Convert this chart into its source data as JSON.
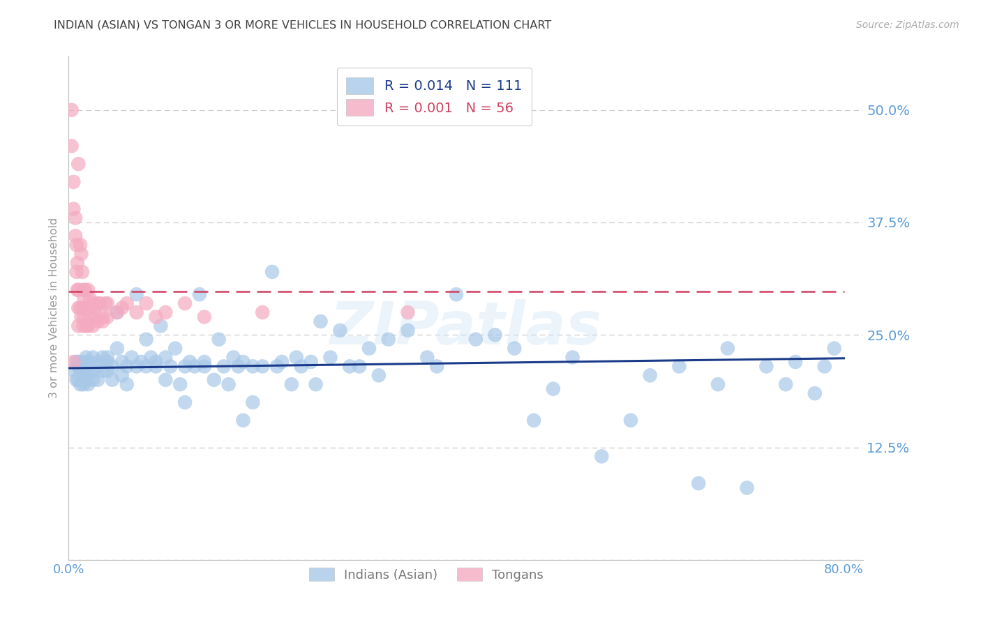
{
  "title": "INDIAN (ASIAN) VS TONGAN 3 OR MORE VEHICLES IN HOUSEHOLD CORRELATION CHART",
  "source": "Source: ZipAtlas.com",
  "ylabel": "3 or more Vehicles in Household",
  "xlim": [
    0.0,
    0.82
  ],
  "ylim": [
    0.0,
    0.56
  ],
  "yticks": [
    0.0,
    0.125,
    0.25,
    0.375,
    0.5
  ],
  "ytick_labels": [
    "",
    "12.5%",
    "25.0%",
    "37.5%",
    "50.0%"
  ],
  "xtick_positions": [
    0.0,
    0.1,
    0.2,
    0.3,
    0.4,
    0.5,
    0.6,
    0.7,
    0.8
  ],
  "xtick_labels": [
    "0.0%",
    "",
    "",
    "",
    "",
    "",
    "",
    "",
    "80.0%"
  ],
  "legend_blue_r": "R = 0.014",
  "legend_blue_n": "N = 111",
  "legend_pink_r": "R = 0.001",
  "legend_pink_n": "N = 56",
  "blue_scatter_color": "#a8c8e8",
  "pink_scatter_color": "#f4aac0",
  "blue_line_color": "#1a3a8a",
  "pink_line_color": "#d04060",
  "grid_color": "#cccccc",
  "title_color": "#404040",
  "tick_color": "#5b9bd5",
  "ylabel_color": "#999999",
  "blue_scatter_x": [
    0.005,
    0.008,
    0.008,
    0.01,
    0.01,
    0.01,
    0.012,
    0.012,
    0.015,
    0.015,
    0.015,
    0.015,
    0.015,
    0.018,
    0.018,
    0.02,
    0.02,
    0.02,
    0.02,
    0.025,
    0.025,
    0.025,
    0.03,
    0.03,
    0.03,
    0.035,
    0.035,
    0.04,
    0.04,
    0.04,
    0.045,
    0.045,
    0.05,
    0.05,
    0.055,
    0.055,
    0.06,
    0.06,
    0.065,
    0.07,
    0.07,
    0.075,
    0.08,
    0.08,
    0.085,
    0.09,
    0.09,
    0.095,
    0.1,
    0.1,
    0.105,
    0.11,
    0.115,
    0.12,
    0.12,
    0.125,
    0.13,
    0.135,
    0.14,
    0.14,
    0.15,
    0.155,
    0.16,
    0.165,
    0.17,
    0.175,
    0.18,
    0.18,
    0.19,
    0.19,
    0.2,
    0.21,
    0.215,
    0.22,
    0.23,
    0.235,
    0.24,
    0.25,
    0.255,
    0.26,
    0.27,
    0.28,
    0.29,
    0.3,
    0.31,
    0.32,
    0.33,
    0.35,
    0.37,
    0.38,
    0.4,
    0.42,
    0.44,
    0.46,
    0.48,
    0.5,
    0.52,
    0.55,
    0.58,
    0.6,
    0.63,
    0.65,
    0.67,
    0.68,
    0.7,
    0.72,
    0.74,
    0.75,
    0.77,
    0.78,
    0.79
  ],
  "blue_scatter_y": [
    0.21,
    0.22,
    0.2,
    0.215,
    0.2,
    0.22,
    0.21,
    0.195,
    0.22,
    0.21,
    0.2,
    0.195,
    0.215,
    0.225,
    0.2,
    0.215,
    0.22,
    0.205,
    0.195,
    0.21,
    0.225,
    0.2,
    0.215,
    0.22,
    0.2,
    0.225,
    0.21,
    0.22,
    0.21,
    0.225,
    0.215,
    0.2,
    0.235,
    0.275,
    0.22,
    0.205,
    0.215,
    0.195,
    0.225,
    0.215,
    0.295,
    0.22,
    0.245,
    0.215,
    0.225,
    0.22,
    0.215,
    0.26,
    0.2,
    0.225,
    0.215,
    0.235,
    0.195,
    0.215,
    0.175,
    0.22,
    0.215,
    0.295,
    0.215,
    0.22,
    0.2,
    0.245,
    0.215,
    0.195,
    0.225,
    0.215,
    0.155,
    0.22,
    0.215,
    0.175,
    0.215,
    0.32,
    0.215,
    0.22,
    0.195,
    0.225,
    0.215,
    0.22,
    0.195,
    0.265,
    0.225,
    0.255,
    0.215,
    0.215,
    0.235,
    0.205,
    0.245,
    0.255,
    0.225,
    0.215,
    0.295,
    0.245,
    0.25,
    0.235,
    0.155,
    0.19,
    0.225,
    0.115,
    0.155,
    0.205,
    0.215,
    0.085,
    0.195,
    0.235,
    0.08,
    0.215,
    0.195,
    0.22,
    0.185,
    0.215,
    0.235
  ],
  "pink_scatter_x": [
    0.003,
    0.003,
    0.005,
    0.005,
    0.005,
    0.007,
    0.007,
    0.008,
    0.008,
    0.009,
    0.009,
    0.01,
    0.01,
    0.01,
    0.01,
    0.012,
    0.012,
    0.013,
    0.013,
    0.014,
    0.015,
    0.015,
    0.015,
    0.016,
    0.016,
    0.017,
    0.018,
    0.018,
    0.02,
    0.02,
    0.02,
    0.022,
    0.022,
    0.025,
    0.025,
    0.027,
    0.028,
    0.03,
    0.03,
    0.032,
    0.035,
    0.035,
    0.038,
    0.04,
    0.04,
    0.05,
    0.055,
    0.06,
    0.07,
    0.08,
    0.09,
    0.1,
    0.12,
    0.14,
    0.2,
    0.35
  ],
  "pink_scatter_y": [
    0.5,
    0.46,
    0.42,
    0.39,
    0.22,
    0.38,
    0.36,
    0.35,
    0.32,
    0.33,
    0.3,
    0.44,
    0.3,
    0.28,
    0.26,
    0.35,
    0.28,
    0.34,
    0.27,
    0.32,
    0.3,
    0.28,
    0.26,
    0.29,
    0.27,
    0.3,
    0.28,
    0.26,
    0.3,
    0.28,
    0.26,
    0.29,
    0.27,
    0.285,
    0.26,
    0.28,
    0.27,
    0.285,
    0.265,
    0.285,
    0.27,
    0.265,
    0.285,
    0.27,
    0.285,
    0.275,
    0.28,
    0.285,
    0.275,
    0.285,
    0.27,
    0.275,
    0.285,
    0.27,
    0.275,
    0.275
  ],
  "blue_trend_x0": 0.0,
  "blue_trend_x1": 0.8,
  "blue_trend_y0": 0.213,
  "blue_trend_y1": 0.224,
  "pink_trend_x0": 0.0,
  "pink_trend_x1": 0.8,
  "pink_trend_y": 0.298,
  "watermark": "ZIPatlas",
  "figsize": [
    14.06,
    8.92
  ],
  "dpi": 100
}
